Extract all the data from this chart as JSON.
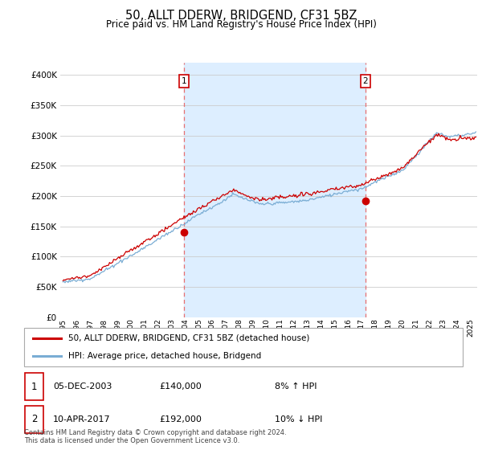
{
  "title": "50, ALLT DDERW, BRIDGEND, CF31 5BZ",
  "subtitle": "Price paid vs. HM Land Registry's House Price Index (HPI)",
  "ytick_values": [
    0,
    50000,
    100000,
    150000,
    200000,
    250000,
    300000,
    350000,
    400000
  ],
  "ylim": [
    0,
    420000
  ],
  "xlim_start": 1994.8,
  "xlim_end": 2025.5,
  "t1x": 2003.92,
  "t2x": 2017.28,
  "marker1_price": 140000,
  "marker2_price": 192000,
  "red_color": "#cc0000",
  "blue_color": "#7aadd4",
  "vline_color": "#e87070",
  "shade_color": "#ddeeff",
  "legend_label1": "50, ALLT DDERW, BRIDGEND, CF31 5BZ (detached house)",
  "legend_label2": "HPI: Average price, detached house, Bridgend",
  "footer": "Contains HM Land Registry data © Crown copyright and database right 2024.\nThis data is licensed under the Open Government Licence v3.0.",
  "table_rows": [
    {
      "num": "1",
      "date": "05-DEC-2003",
      "price": "£140,000",
      "pct": "8% ↑ HPI"
    },
    {
      "num": "2",
      "date": "10-APR-2017",
      "price": "£192,000",
      "pct": "10% ↓ HPI"
    }
  ]
}
